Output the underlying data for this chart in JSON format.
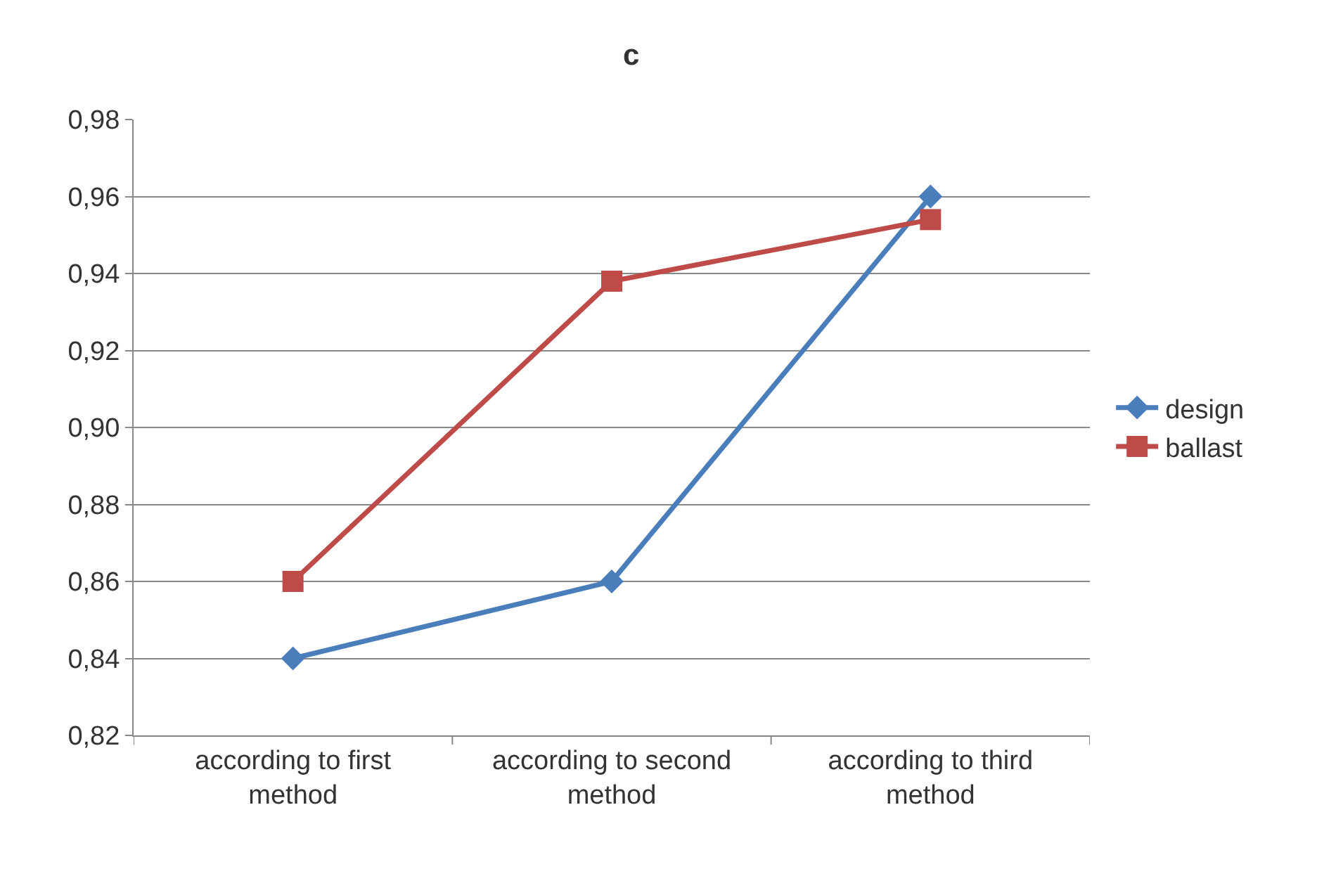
{
  "chart_data": {
    "type": "line",
    "title": "c",
    "categories": [
      "according to first method",
      "according to second method",
      "according to third method"
    ],
    "series": [
      {
        "name": "design",
        "color": "#4a7ebb",
        "values": [
          0.84,
          0.86,
          0.96
        ],
        "marker": "diamond"
      },
      {
        "name": "ballast",
        "color": "#be4b48",
        "values": [
          0.86,
          0.938,
          0.954
        ],
        "marker": "square"
      }
    ],
    "ylim": [
      0.82,
      0.98
    ],
    "yticks": [
      {
        "value": 0.82,
        "label": "0,82"
      },
      {
        "value": 0.84,
        "label": "0,84"
      },
      {
        "value": 0.86,
        "label": "0,86"
      },
      {
        "value": 0.88,
        "label": "0,88"
      },
      {
        "value": 0.9,
        "label": "0,90"
      },
      {
        "value": 0.92,
        "label": "0,92"
      },
      {
        "value": 0.94,
        "label": "0,94"
      },
      {
        "value": 0.96,
        "label": "0,96"
      },
      {
        "value": 0.98,
        "label": "0,98"
      }
    ],
    "grid": "y",
    "legend": "right",
    "line_style": "solid"
  }
}
